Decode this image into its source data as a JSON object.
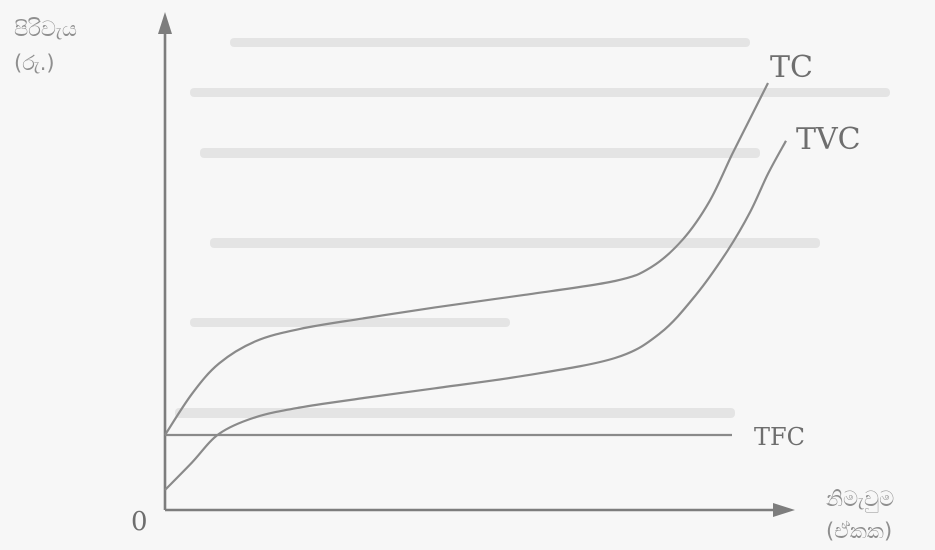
{
  "chart_data": {
    "type": "line",
    "ylabel_line1": "පිරිවැය",
    "ylabel_line2": "(රු.)",
    "xlabel_line1": "නිමැවුම",
    "xlabel_line2": "(ඒකක)",
    "origin_label": "0",
    "series": [
      {
        "name": "TC",
        "x": [
          0,
          0.3,
          0.6,
          1.0,
          1.5,
          2.2,
          3.0,
          4.0,
          5.0,
          5.4,
          5.75,
          6.05,
          6.3,
          6.5,
          6.7
        ],
        "y": [
          1.0,
          1.75,
          2.3,
          2.7,
          2.93,
          3.12,
          3.32,
          3.55,
          3.8,
          4.05,
          4.55,
          5.25,
          6.1,
          6.75,
          7.4
        ]
      },
      {
        "name": "TVC",
        "x": [
          0,
          0.3,
          0.6,
          1.0,
          1.5,
          2.2,
          3.0,
          4.0,
          5.0,
          5.5,
          5.9,
          6.25,
          6.5,
          6.7,
          6.9
        ],
        "y": [
          0,
          0.5,
          1.02,
          1.32,
          1.5,
          1.67,
          1.85,
          2.08,
          2.4,
          2.85,
          3.55,
          4.35,
          5.05,
          5.75,
          6.35
        ]
      },
      {
        "name": "TFC",
        "x": [
          0,
          6.3
        ],
        "y": [
          1.0,
          1.0
        ]
      }
    ],
    "grid": false,
    "legend": "none"
  }
}
